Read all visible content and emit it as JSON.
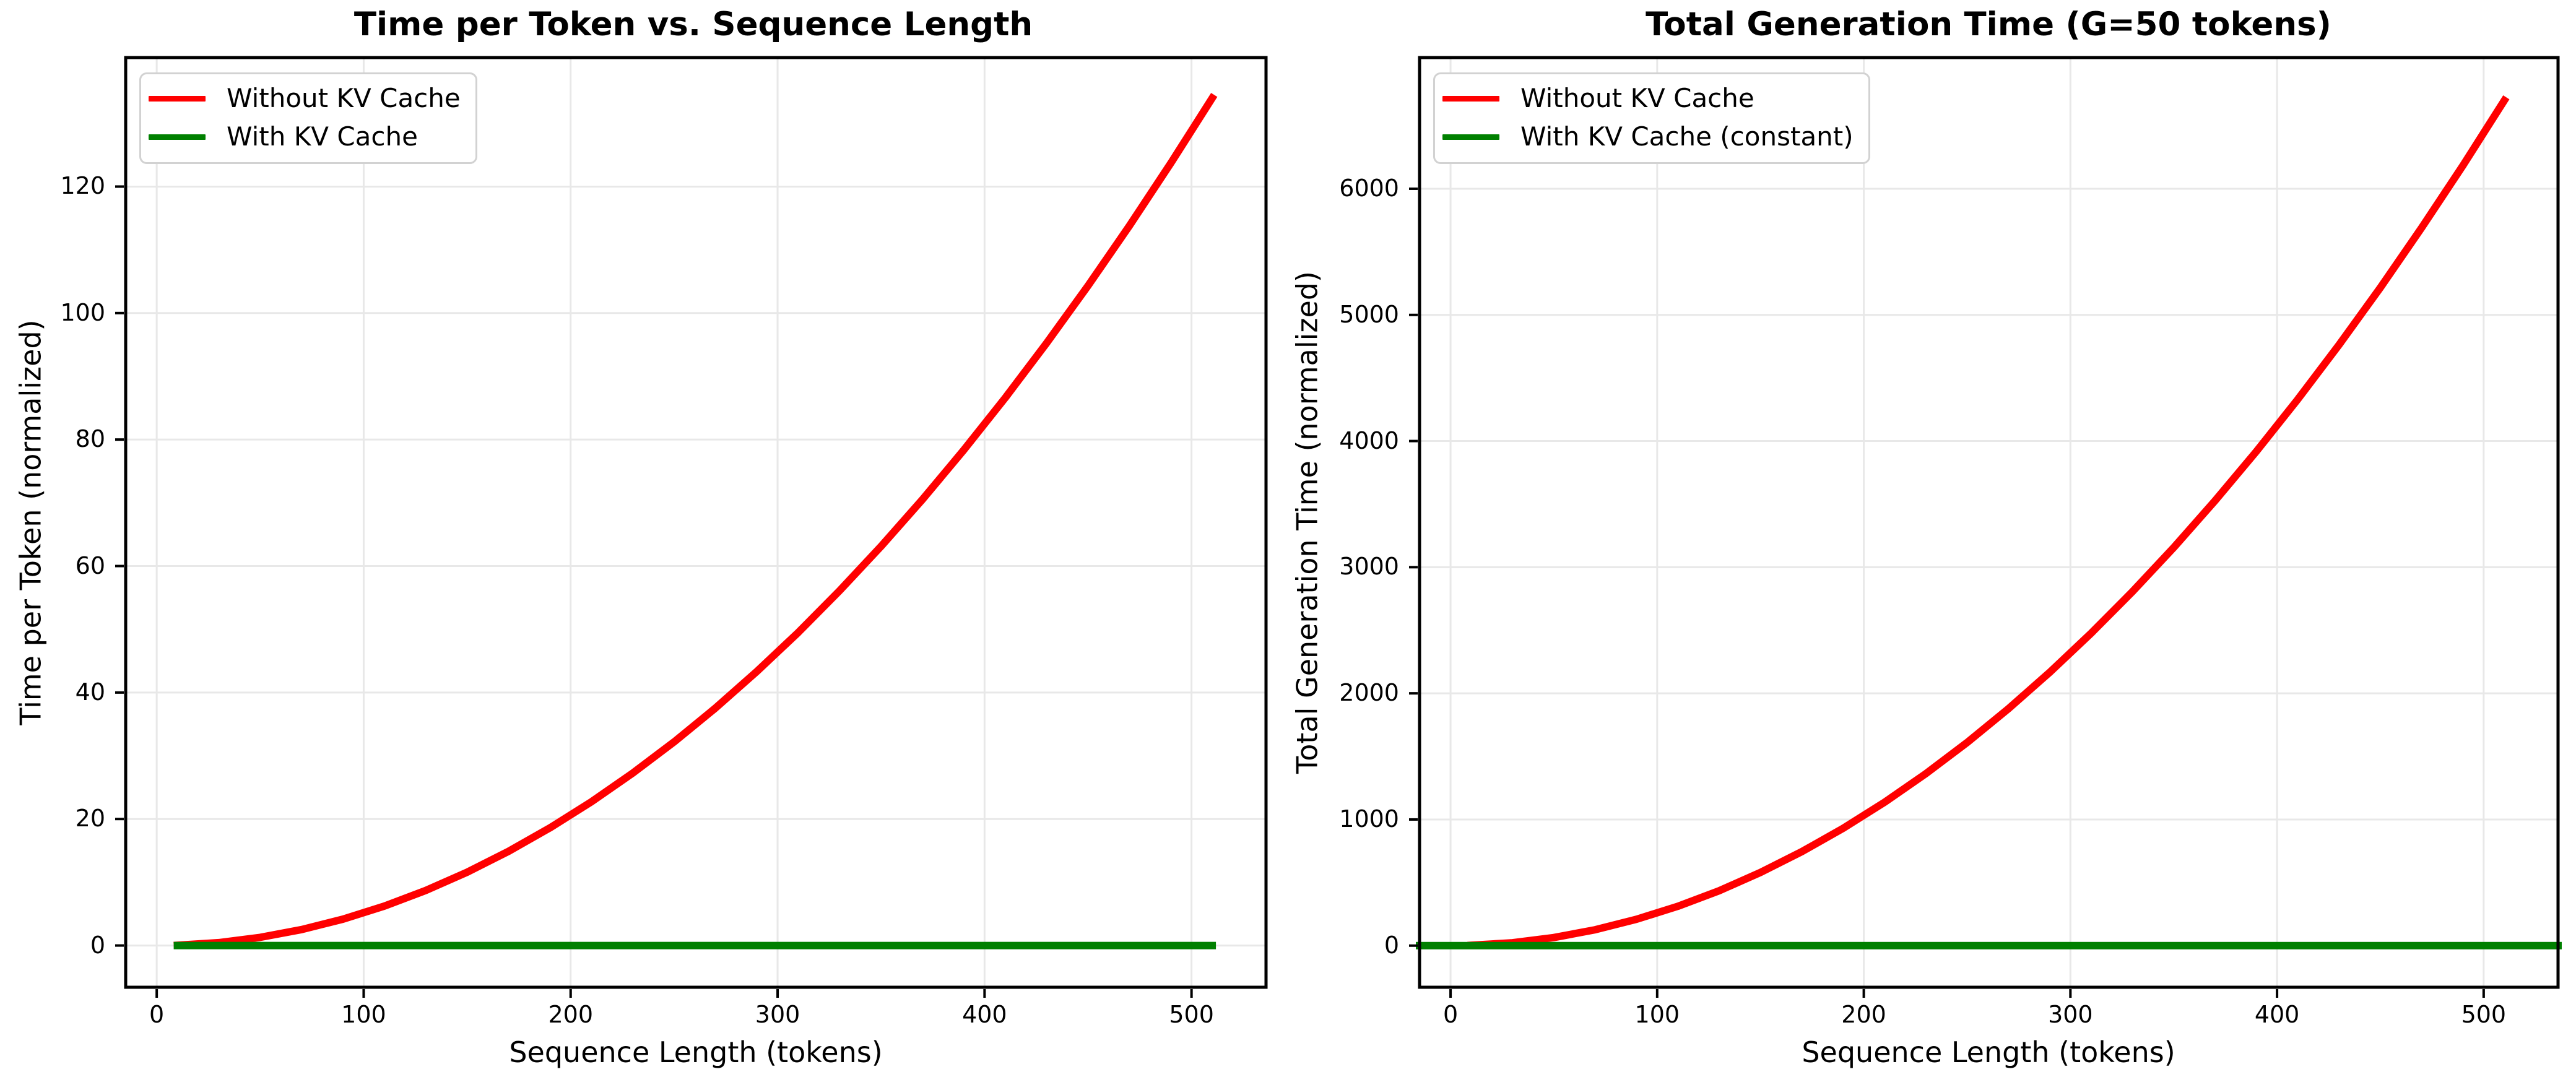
{
  "figure": {
    "background_color": "#ffffff",
    "text_color": "#000000",
    "grid_color": "#e8e8e8",
    "spine_color": "#000000",
    "accent_red": "#ff0000",
    "accent_green": "#008000"
  },
  "chart_data": [
    {
      "type": "line",
      "title": "Time per Token vs. Sequence Length",
      "xlabel": "Sequence Length (tokens)",
      "ylabel": "Time per Token (normalized)",
      "xlim": [
        -15,
        536
      ],
      "ylim": [
        -6.6,
        140.4
      ],
      "xticks": [
        0,
        100,
        200,
        300,
        400,
        500
      ],
      "yticks": [
        0,
        20,
        40,
        60,
        80,
        100,
        120
      ],
      "grid": true,
      "legend_position": "upper-left",
      "x": [
        10,
        30,
        50,
        70,
        90,
        110,
        130,
        150,
        170,
        190,
        210,
        230,
        250,
        270,
        290,
        310,
        330,
        350,
        370,
        390,
        410,
        430,
        450,
        470,
        490,
        510
      ],
      "series": [
        {
          "name": "Without KV Cache",
          "color": "#ff0000",
          "values": [
            0.05,
            0.46,
            1.29,
            2.52,
            4.17,
            6.23,
            8.71,
            11.59,
            14.89,
            18.6,
            22.72,
            27.25,
            32.2,
            37.56,
            43.33,
            49.51,
            56.11,
            63.12,
            70.53,
            78.36,
            86.6,
            95.26,
            104.33,
            113.81,
            123.7,
            134.0
          ]
        },
        {
          "name": "With KV Cache",
          "color": "#008000",
          "values": [
            0,
            0,
            0,
            0,
            0,
            0,
            0,
            0,
            0,
            0,
            0,
            0,
            0,
            0,
            0,
            0,
            0,
            0,
            0,
            0,
            0,
            0,
            0,
            0,
            0,
            0
          ]
        }
      ]
    },
    {
      "type": "line",
      "title": "Total Generation Time (G=50 tokens)",
      "xlabel": "Sequence Length (tokens)",
      "ylabel": "Total Generation Time (normalized)",
      "xlim": [
        -15,
        536
      ],
      "ylim": [
        -330,
        7040
      ],
      "xticks": [
        0,
        100,
        200,
        300,
        400,
        500
      ],
      "yticks": [
        0,
        1000,
        2000,
        3000,
        4000,
        5000,
        6000
      ],
      "grid": true,
      "legend_position": "upper-left",
      "x": [
        10,
        30,
        50,
        70,
        90,
        110,
        130,
        150,
        170,
        190,
        210,
        230,
        250,
        270,
        290,
        310,
        330,
        350,
        370,
        390,
        410,
        430,
        450,
        470,
        490,
        510
      ],
      "series": [
        {
          "name": "Without KV Cache",
          "color": "#ff0000",
          "values": [
            3,
            23,
            64,
            126,
            209,
            312,
            435,
            580,
            745,
            930,
            1136,
            1363,
            1610,
            1878,
            2167,
            2476,
            2806,
            3156,
            3527,
            3918,
            4330,
            4763,
            5216,
            5691,
            6185,
            6700
          ]
        },
        {
          "name": "With KV Cache (constant)",
          "color": "#008000",
          "span_full_width": true,
          "values": [
            0,
            0,
            0,
            0,
            0,
            0,
            0,
            0,
            0,
            0,
            0,
            0,
            0,
            0,
            0,
            0,
            0,
            0,
            0,
            0,
            0,
            0,
            0,
            0,
            0,
            0
          ]
        }
      ]
    }
  ]
}
